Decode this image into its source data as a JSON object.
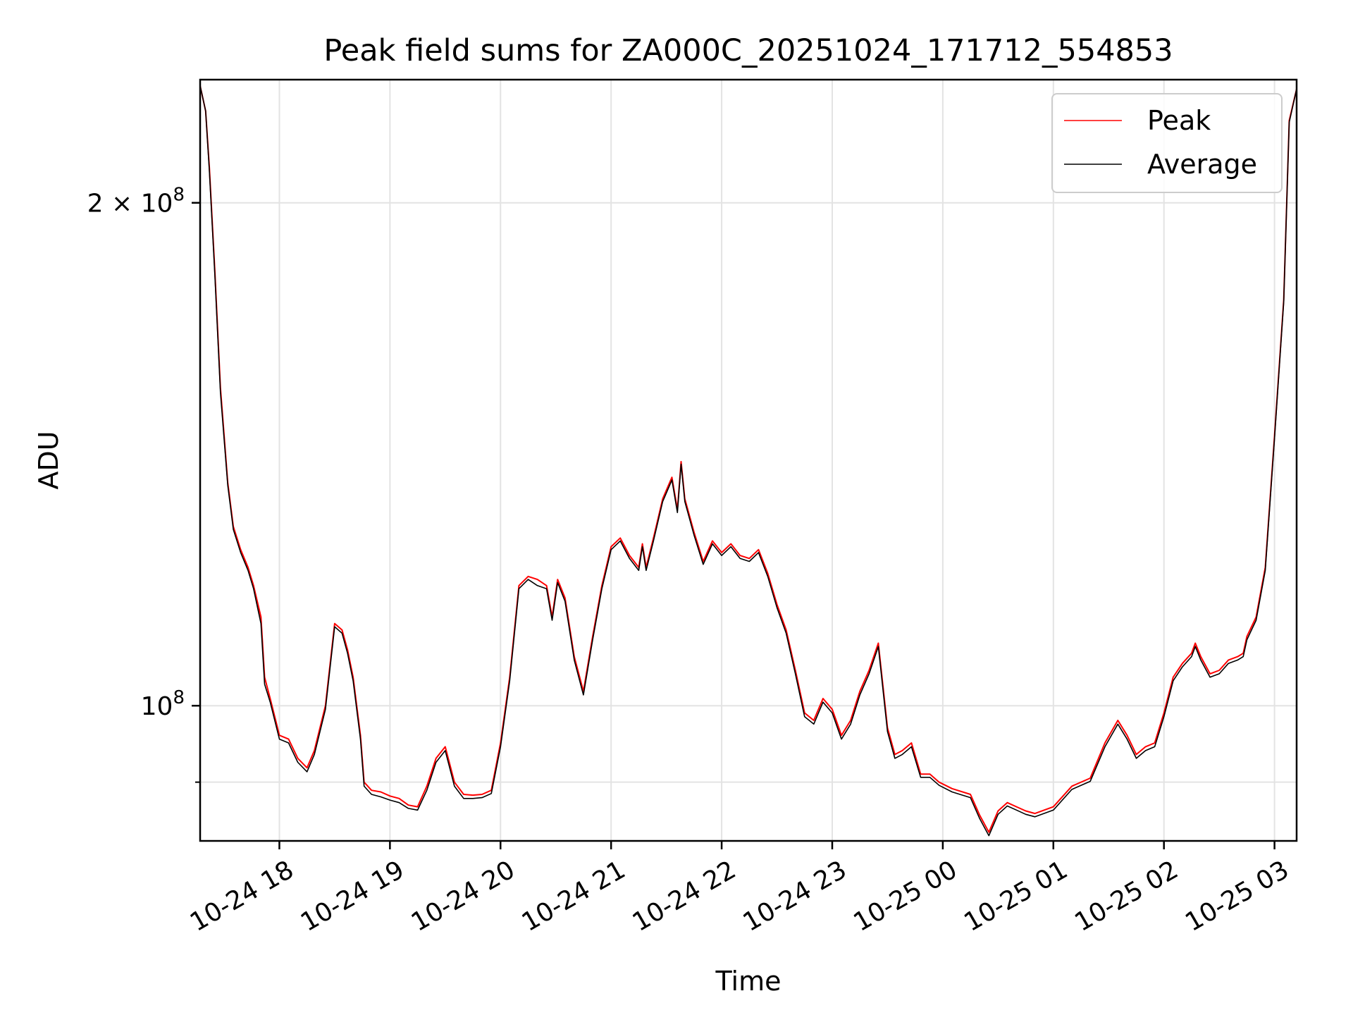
{
  "chart_data": {
    "type": "line",
    "title": "Peak field sums for ZA000C_20251024_171712_554853",
    "xlabel": "Time",
    "ylabel": "ADU",
    "y_scale": "log",
    "grid": true,
    "legend_position": "top-right",
    "xlim": [
      "2025-10-24 17:17",
      "2025-10-25 03:12"
    ],
    "ylim": [
      83000000,
      237000000
    ],
    "x_ticks": [
      "2025-10-24 18:00",
      "2025-10-24 19:00",
      "2025-10-24 20:00",
      "2025-10-24 21:00",
      "2025-10-24 22:00",
      "2025-10-24 23:00",
      "2025-10-25 00:00",
      "2025-10-25 01:00",
      "2025-10-25 02:00",
      "2025-10-25 03:00"
    ],
    "x_tick_labels": [
      "10-24 18",
      "10-24 19",
      "10-24 20",
      "10-24 21",
      "10-24 22",
      "10-24 23",
      "10-25 00",
      "10-25 01",
      "10-25 02",
      "10-25 03"
    ],
    "y_ticks_major": [
      100000000,
      200000000
    ],
    "y_tick_labels_major": {
      "mantissa": [
        "",
        "2"
      ],
      "base": "10",
      "exponent": "8"
    },
    "y_ticks_minor": [
      90000000
    ],
    "colors": {
      "peak": "#ff0000",
      "average": "#000000"
    },
    "series": [
      {
        "name": "Peak",
        "x": [
          "2025-10-24 17:17",
          "2025-10-24 17:20",
          "2025-10-24 17:22",
          "2025-10-24 17:25",
          "2025-10-24 17:28",
          "2025-10-24 17:32",
          "2025-10-24 17:35",
          "2025-10-24 17:39",
          "2025-10-24 17:43",
          "2025-10-24 17:46",
          "2025-10-24 17:50",
          "2025-10-24 17:52",
          "2025-10-24 17:55",
          "2025-10-24 17:58",
          "2025-10-24 18:00",
          "2025-10-24 18:05",
          "2025-10-24 18:10",
          "2025-10-24 18:15",
          "2025-10-24 18:19",
          "2025-10-24 18:25",
          "2025-10-24 18:30",
          "2025-10-24 18:34",
          "2025-10-24 18:37",
          "2025-10-24 18:40",
          "2025-10-24 18:44",
          "2025-10-24 18:46",
          "2025-10-24 18:50",
          "2025-10-24 18:55",
          "2025-10-24 19:00",
          "2025-10-24 19:05",
          "2025-10-24 19:10",
          "2025-10-24 19:15",
          "2025-10-24 19:20",
          "2025-10-24 19:25",
          "2025-10-24 19:30",
          "2025-10-24 19:35",
          "2025-10-24 19:40",
          "2025-10-24 19:45",
          "2025-10-24 19:50",
          "2025-10-24 19:55",
          "2025-10-24 20:00",
          "2025-10-24 20:05",
          "2025-10-24 20:10",
          "2025-10-24 20:15",
          "2025-10-24 20:20",
          "2025-10-24 20:25",
          "2025-10-24 20:28",
          "2025-10-24 20:31",
          "2025-10-24 20:35",
          "2025-10-24 20:40",
          "2025-10-24 20:45",
          "2025-10-24 20:50",
          "2025-10-24 20:55",
          "2025-10-24 21:00",
          "2025-10-24 21:05",
          "2025-10-24 21:10",
          "2025-10-24 21:15",
          "2025-10-24 21:17",
          "2025-10-24 21:19",
          "2025-10-24 21:23",
          "2025-10-24 21:28",
          "2025-10-24 21:33",
          "2025-10-24 21:36",
          "2025-10-24 21:38",
          "2025-10-24 21:40",
          "2025-10-24 21:45",
          "2025-10-24 21:50",
          "2025-10-24 21:55",
          "2025-10-24 22:00",
          "2025-10-24 22:05",
          "2025-10-24 22:10",
          "2025-10-24 22:15",
          "2025-10-24 22:20",
          "2025-10-24 22:25",
          "2025-10-24 22:30",
          "2025-10-24 22:35",
          "2025-10-24 22:40",
          "2025-10-24 22:45",
          "2025-10-24 22:50",
          "2025-10-24 22:55",
          "2025-10-24 23:00",
          "2025-10-24 23:05",
          "2025-10-24 23:10",
          "2025-10-24 23:15",
          "2025-10-24 23:20",
          "2025-10-24 23:25",
          "2025-10-24 23:30",
          "2025-10-24 23:34",
          "2025-10-24 23:38",
          "2025-10-24 23:43",
          "2025-10-24 23:48",
          "2025-10-24 23:53",
          "2025-10-24 23:58",
          "2025-10-25 00:05",
          "2025-10-25 00:15",
          "2025-10-25 00:20",
          "2025-10-25 00:25",
          "2025-10-25 00:30",
          "2025-10-25 00:35",
          "2025-10-25 00:40",
          "2025-10-25 00:45",
          "2025-10-25 00:50",
          "2025-10-25 01:00",
          "2025-10-25 01:10",
          "2025-10-25 01:20",
          "2025-10-25 01:28",
          "2025-10-25 01:35",
          "2025-10-25 01:40",
          "2025-10-25 01:45",
          "2025-10-25 01:50",
          "2025-10-25 01:55",
          "2025-10-25 02:00",
          "2025-10-25 02:05",
          "2025-10-25 02:10",
          "2025-10-25 02:15",
          "2025-10-25 02:17",
          "2025-10-25 02:20",
          "2025-10-25 02:25",
          "2025-10-25 02:30",
          "2025-10-25 02:35",
          "2025-10-25 02:40",
          "2025-10-25 02:43",
          "2025-10-25 02:45",
          "2025-10-25 02:50",
          "2025-10-25 02:55",
          "2025-10-25 03:00",
          "2025-10-25 03:05",
          "2025-10-25 03:08",
          "2025-10-25 03:12"
        ],
        "values": [
          235000000,
          227000000,
          210000000,
          182000000,
          155000000,
          136000000,
          128000000,
          124000000,
          121000000,
          118000000,
          113000000,
          104000000,
          101000000,
          98000000,
          96000000,
          95500000,
          93000000,
          91800000,
          94000000,
          100000000,
          112000000,
          111000000,
          108000000,
          104000000,
          96000000,
          90000000,
          89000000,
          88800000,
          88300000,
          88000000,
          87200000,
          87000000,
          89500000,
          93000000,
          94500000,
          90000000,
          88500000,
          88400000,
          88500000,
          89000000,
          95000000,
          104000000,
          118000000,
          119500000,
          119000000,
          118000000,
          113000000,
          119000000,
          116000000,
          107000000,
          102000000,
          110000000,
          118000000,
          124500000,
          126000000,
          123000000,
          121000000,
          125000000,
          121000000,
          126000000,
          133000000,
          137000000,
          131000000,
          140000000,
          133000000,
          127000000,
          122000000,
          125500000,
          123500000,
          125000000,
          123000000,
          122500000,
          124000000,
          120000000,
          115000000,
          111000000,
          105000000,
          99000000,
          98000000,
          101000000,
          99500000,
          96000000,
          98000000,
          102000000,
          105000000,
          109000000,
          97000000,
          93500000,
          94000000,
          95000000,
          91000000,
          91000000,
          90000000,
          89200000,
          88500000,
          86000000,
          84000000,
          86500000,
          87500000,
          87000000,
          86500000,
          86200000,
          87000000,
          89500000,
          90500000,
          95000000,
          98000000,
          96000000,
          93500000,
          94500000,
          95000000,
          99000000,
          104000000,
          106000000,
          107500000,
          109000000,
          107000000,
          104500000,
          105000000,
          106500000,
          107000000,
          107500000,
          110000000,
          113000000,
          121000000,
          145000000,
          175000000,
          224000000,
          234000000
        ]
      },
      {
        "name": "Average",
        "x": [
          "2025-10-24 17:17",
          "2025-10-24 17:20",
          "2025-10-24 17:22",
          "2025-10-24 17:25",
          "2025-10-24 17:28",
          "2025-10-24 17:32",
          "2025-10-24 17:35",
          "2025-10-24 17:39",
          "2025-10-24 17:43",
          "2025-10-24 17:46",
          "2025-10-24 17:50",
          "2025-10-24 17:52",
          "2025-10-24 17:55",
          "2025-10-24 17:58",
          "2025-10-24 18:00",
          "2025-10-24 18:05",
          "2025-10-24 18:10",
          "2025-10-24 18:15",
          "2025-10-24 18:19",
          "2025-10-24 18:25",
          "2025-10-24 18:30",
          "2025-10-24 18:34",
          "2025-10-24 18:37",
          "2025-10-24 18:40",
          "2025-10-24 18:44",
          "2025-10-24 18:46",
          "2025-10-24 18:50",
          "2025-10-24 18:55",
          "2025-10-24 19:00",
          "2025-10-24 19:05",
          "2025-10-24 19:10",
          "2025-10-24 19:15",
          "2025-10-24 19:20",
          "2025-10-24 19:25",
          "2025-10-24 19:30",
          "2025-10-24 19:35",
          "2025-10-24 19:40",
          "2025-10-24 19:45",
          "2025-10-24 19:50",
          "2025-10-24 19:55",
          "2025-10-24 20:00",
          "2025-10-24 20:05",
          "2025-10-24 20:10",
          "2025-10-24 20:15",
          "2025-10-24 20:20",
          "2025-10-24 20:25",
          "2025-10-24 20:28",
          "2025-10-24 20:31",
          "2025-10-24 20:35",
          "2025-10-24 20:40",
          "2025-10-24 20:45",
          "2025-10-24 20:50",
          "2025-10-24 20:55",
          "2025-10-24 21:00",
          "2025-10-24 21:05",
          "2025-10-24 21:10",
          "2025-10-24 21:15",
          "2025-10-24 21:17",
          "2025-10-24 21:19",
          "2025-10-24 21:23",
          "2025-10-24 21:28",
          "2025-10-24 21:33",
          "2025-10-24 21:36",
          "2025-10-24 21:38",
          "2025-10-24 21:40",
          "2025-10-24 21:45",
          "2025-10-24 21:50",
          "2025-10-24 21:55",
          "2025-10-24 22:00",
          "2025-10-24 22:05",
          "2025-10-24 22:10",
          "2025-10-24 22:15",
          "2025-10-24 22:20",
          "2025-10-24 22:25",
          "2025-10-24 22:30",
          "2025-10-24 22:35",
          "2025-10-24 22:40",
          "2025-10-24 22:45",
          "2025-10-24 22:50",
          "2025-10-24 22:55",
          "2025-10-24 23:00",
          "2025-10-24 23:05",
          "2025-10-24 23:10",
          "2025-10-24 23:15",
          "2025-10-24 23:20",
          "2025-10-24 23:25",
          "2025-10-24 23:30",
          "2025-10-24 23:34",
          "2025-10-24 23:38",
          "2025-10-24 23:43",
          "2025-10-24 23:48",
          "2025-10-24 23:53",
          "2025-10-24 23:58",
          "2025-10-25 00:05",
          "2025-10-25 00:15",
          "2025-10-25 00:20",
          "2025-10-25 00:25",
          "2025-10-25 00:30",
          "2025-10-25 00:35",
          "2025-10-25 00:40",
          "2025-10-25 00:45",
          "2025-10-25 00:50",
          "2025-10-25 01:00",
          "2025-10-25 01:10",
          "2025-10-25 01:20",
          "2025-10-25 01:28",
          "2025-10-25 01:35",
          "2025-10-25 01:40",
          "2025-10-25 01:45",
          "2025-10-25 01:50",
          "2025-10-25 01:55",
          "2025-10-25 02:00",
          "2025-10-25 02:05",
          "2025-10-25 02:10",
          "2025-10-25 02:15",
          "2025-10-25 02:17",
          "2025-10-25 02:20",
          "2025-10-25 02:25",
          "2025-10-25 02:30",
          "2025-10-25 02:35",
          "2025-10-25 02:40",
          "2025-10-25 02:43",
          "2025-10-25 02:45",
          "2025-10-25 02:50",
          "2025-10-25 02:55",
          "2025-10-25 03:00",
          "2025-10-25 03:05",
          "2025-10-25 03:08",
          "2025-10-25 03:12"
        ],
        "values": [
          235000000,
          227000000,
          209000000,
          181000000,
          154000000,
          135500000,
          127500000,
          123500000,
          120500000,
          117500000,
          112000000,
          103000000,
          100500000,
          97500000,
          95500000,
          95000000,
          92500000,
          91300000,
          93500000,
          99500000,
          111500000,
          110500000,
          107500000,
          103500000,
          95500000,
          89500000,
          88500000,
          88200000,
          87800000,
          87500000,
          86800000,
          86600000,
          89000000,
          92500000,
          94000000,
          89500000,
          88000000,
          88000000,
          88100000,
          88600000,
          94500000,
          103500000,
          117500000,
          119000000,
          118000000,
          117500000,
          112500000,
          118500000,
          115500000,
          106500000,
          101500000,
          109500000,
          117500000,
          124000000,
          125500000,
          122500000,
          120500000,
          124500000,
          120500000,
          125500000,
          132500000,
          136500000,
          130500000,
          139500000,
          132500000,
          126500000,
          121500000,
          125000000,
          123000000,
          124500000,
          122500000,
          122000000,
          123500000,
          119500000,
          114500000,
          110500000,
          104500000,
          98500000,
          97500000,
          100500000,
          99000000,
          95500000,
          97500000,
          101500000,
          104500000,
          108500000,
          96500000,
          93000000,
          93500000,
          94500000,
          90600000,
          90600000,
          89600000,
          88800000,
          88100000,
          85600000,
          83600000,
          86100000,
          87100000,
          86600000,
          86100000,
          85800000,
          86600000,
          89100000,
          90100000,
          94500000,
          97500000,
          95500000,
          93000000,
          94000000,
          94500000,
          98500000,
          103500000,
          105500000,
          107000000,
          108500000,
          106500000,
          104000000,
          104500000,
          106000000,
          106500000,
          107000000,
          109500000,
          112500000,
          120500000,
          144500000,
          174500000,
          223500000,
          234000000
        ]
      }
    ]
  }
}
